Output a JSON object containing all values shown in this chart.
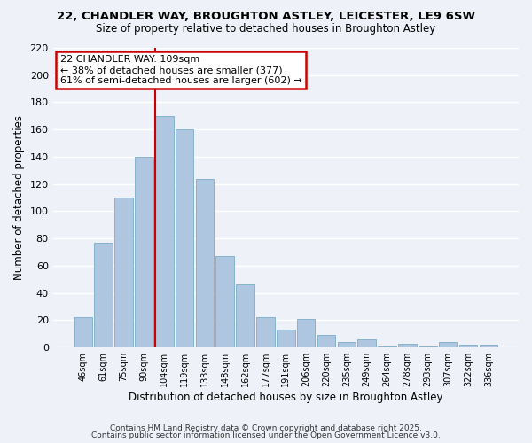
{
  "title_line1": "22, CHANDLER WAY, BROUGHTON ASTLEY, LEICESTER, LE9 6SW",
  "title_line2": "Size of property relative to detached houses in Broughton Astley",
  "xlabel": "Distribution of detached houses by size in Broughton Astley",
  "ylabel": "Number of detached properties",
  "categories": [
    "46sqm",
    "61sqm",
    "75sqm",
    "90sqm",
    "104sqm",
    "119sqm",
    "133sqm",
    "148sqm",
    "162sqm",
    "177sqm",
    "191sqm",
    "206sqm",
    "220sqm",
    "235sqm",
    "249sqm",
    "264sqm",
    "278sqm",
    "293sqm",
    "307sqm",
    "322sqm",
    "336sqm"
  ],
  "values": [
    22,
    77,
    110,
    140,
    170,
    160,
    124,
    67,
    46,
    22,
    13,
    21,
    9,
    4,
    6,
    1,
    3,
    1,
    4,
    2,
    2
  ],
  "bar_color": "#aec6df",
  "bar_edge_color": "#7aacc8",
  "vline_index": 4,
  "ylim": [
    0,
    220
  ],
  "yticks": [
    0,
    20,
    40,
    60,
    80,
    100,
    120,
    140,
    160,
    180,
    200,
    220
  ],
  "annotation_title": "22 CHANDLER WAY: 109sqm",
  "annotation_line2": "← 38% of detached houses are smaller (377)",
  "annotation_line3": "61% of semi-detached houses are larger (602) →",
  "annotation_box_color": "#ffffff",
  "annotation_box_edge": "#cc0000",
  "vline_color": "#cc0000",
  "background_color": "#eef2f8",
  "grid_color": "#ffffff",
  "footer_line1": "Contains HM Land Registry data © Crown copyright and database right 2025.",
  "footer_line2": "Contains public sector information licensed under the Open Government Licence v3.0."
}
